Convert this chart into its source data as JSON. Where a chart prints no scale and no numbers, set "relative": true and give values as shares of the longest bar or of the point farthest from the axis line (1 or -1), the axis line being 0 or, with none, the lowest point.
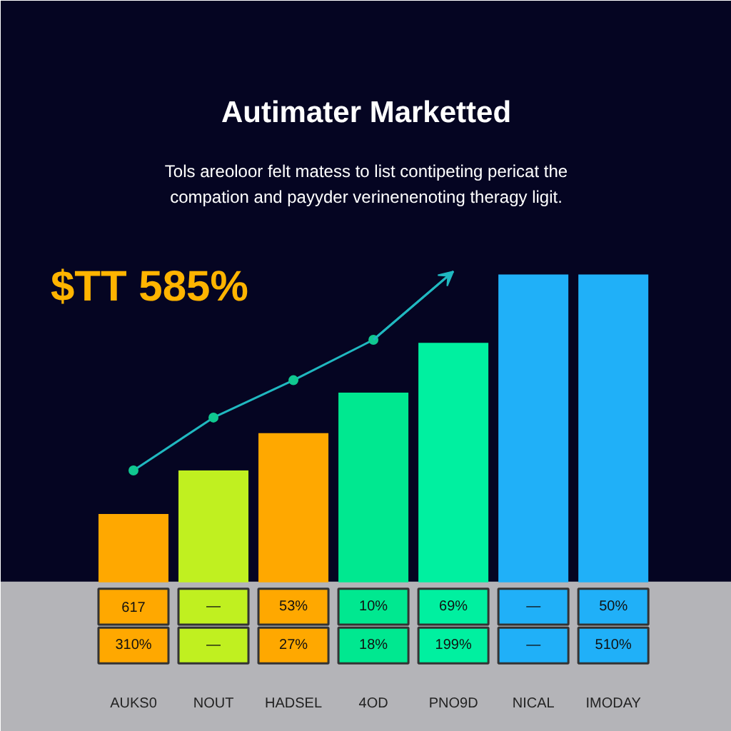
{
  "chart_data": {
    "type": "bar",
    "relative": true,
    "title": "Autimater Marketted",
    "subtitle": "Tols areoloor felt matess to list contipeting pericat the\ncompation and payyder verinenenoting theragy ligit.",
    "categories": [
      "AUKS0",
      "NOUT",
      "HADSEL",
      "4OD",
      "PNO9D",
      "NICAL",
      "IMODAY"
    ],
    "values": [
      0.22,
      0.36,
      0.48,
      0.61,
      0.77,
      0.99,
      0.99
    ],
    "colors": [
      "#ffa800",
      "#c0f020",
      "#ffa800",
      "#00e890",
      "#00f0a0",
      "#20b0f8",
      "#20b0f8"
    ],
    "series": [
      {
        "type": "line",
        "color": "#20b8c0",
        "values": [
          0.36,
          0.53,
          0.65,
          0.78,
          1.0,
          null,
          null
        ]
      }
    ],
    "marker": "circle",
    "annotations": [
      "$TT 585%",
      "617",
      "—",
      "53%",
      "10%",
      "69%",
      "—",
      "50%",
      "310%",
      "—",
      "27%",
      "18%",
      "199%",
      "—",
      "510%"
    ]
  }
}
